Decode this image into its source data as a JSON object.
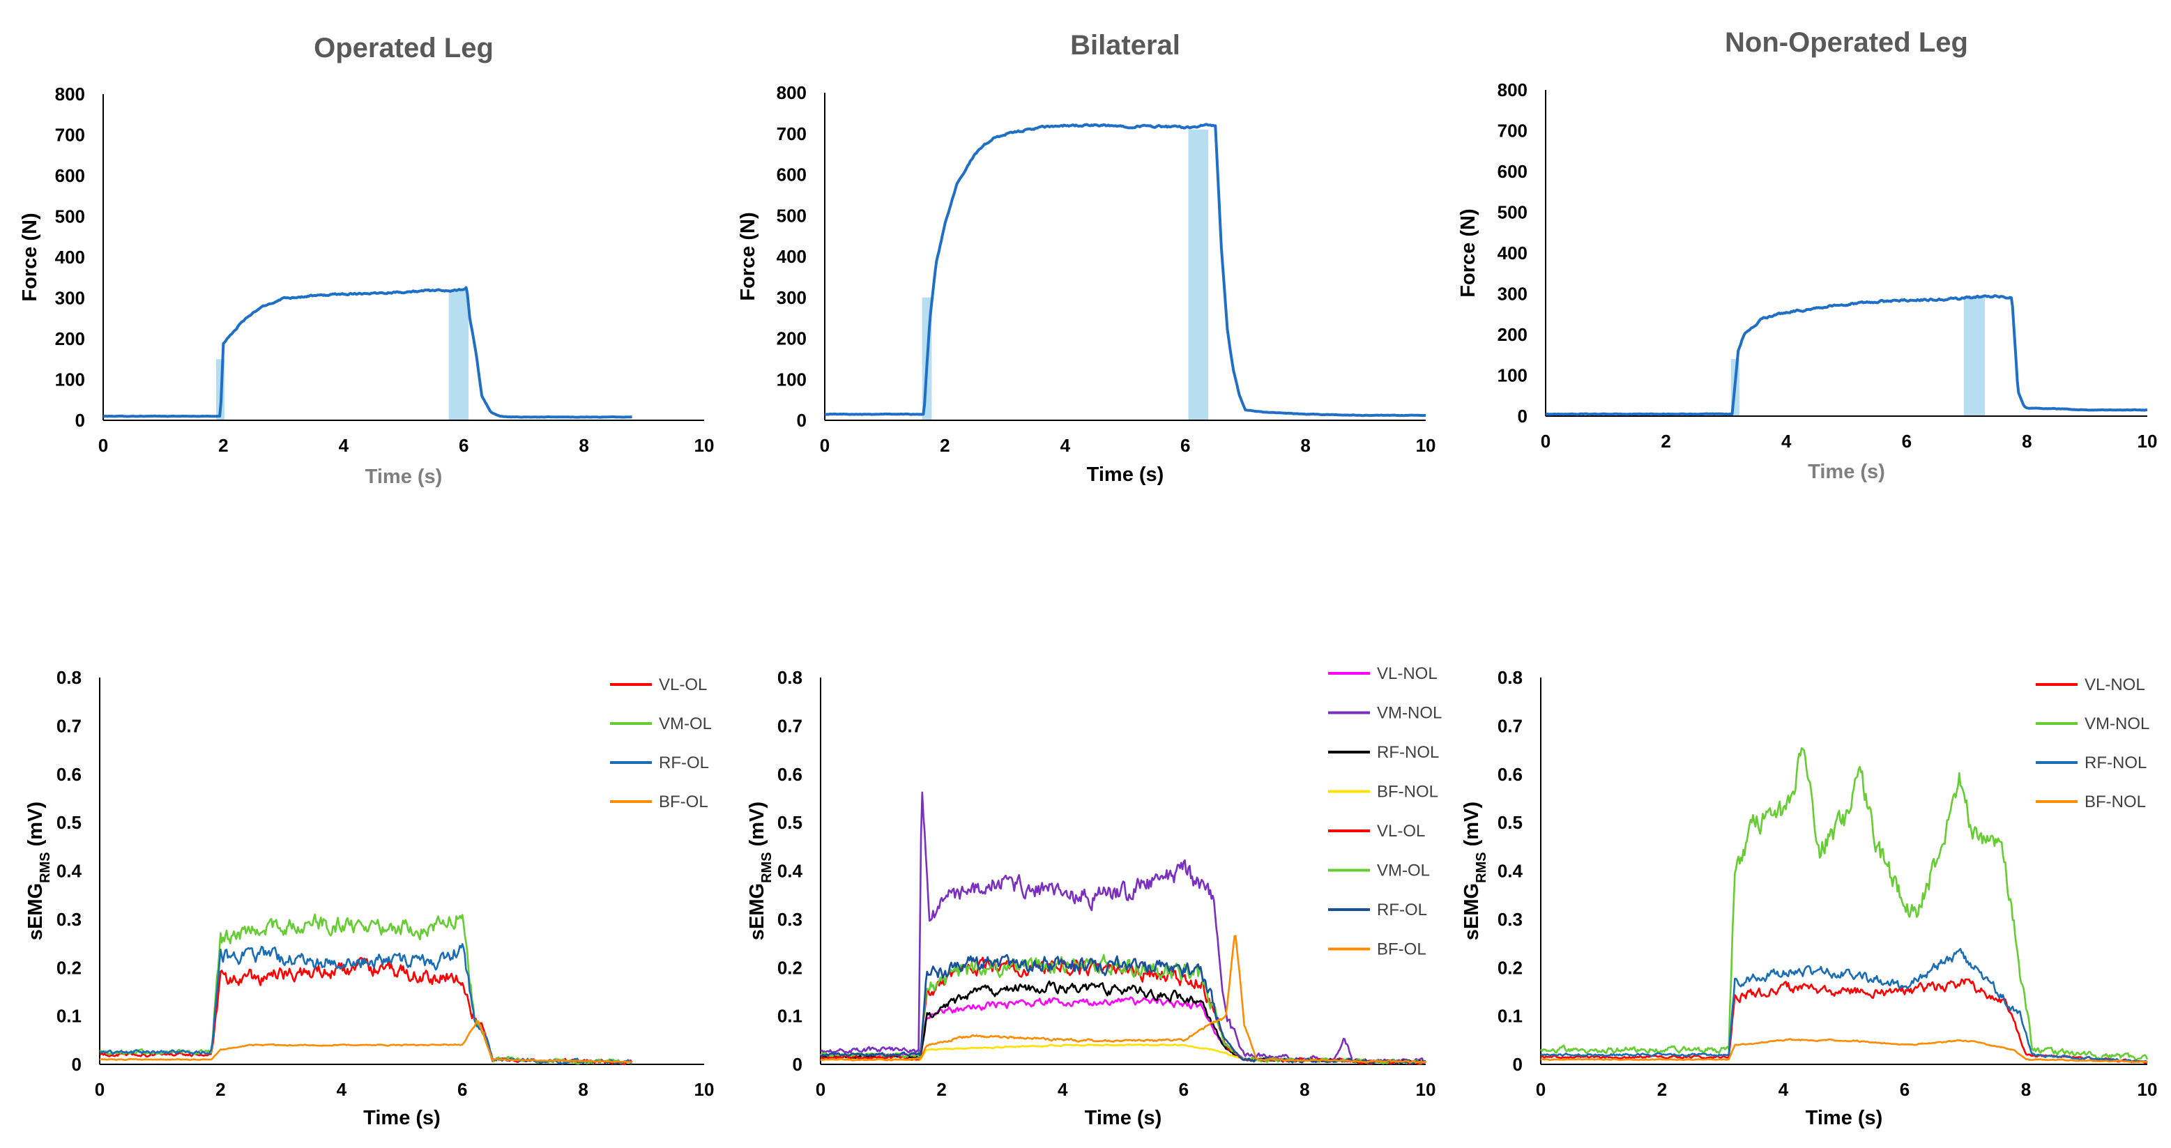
{
  "chart_data": [
    {
      "type": "line",
      "panel": "force-operated",
      "title": "Operated Leg",
      "xlabel": "Time (s)",
      "ylabel": "Force (N)",
      "xlim": [
        0,
        10
      ],
      "ylim": [
        0,
        800
      ],
      "xticks": [
        "0",
        "2",
        "4",
        "6",
        "8",
        "10"
      ],
      "yticks": [
        "0",
        "100",
        "200",
        "300",
        "400",
        "500",
        "600",
        "700",
        "800"
      ],
      "xlabel_color": "#7f7f7f",
      "series": [
        {
          "name": "Force",
          "color": "#1f6fc5",
          "x": [
            0,
            1.95,
            2.0,
            2.1,
            2.3,
            2.6,
            3.0,
            3.5,
            4.0,
            4.5,
            5.0,
            5.5,
            5.9,
            6.05,
            6.1,
            6.2,
            6.3,
            6.45,
            6.6,
            6.8,
            7.0,
            8.0,
            8.8
          ],
          "y": [
            10,
            10,
            190,
            205,
            240,
            275,
            300,
            305,
            310,
            312,
            315,
            318,
            318,
            325,
            250,
            170,
            60,
            20,
            10,
            8,
            8,
            8,
            8
          ],
          "noise": 4
        }
      ],
      "shaded": [
        {
          "x0": 1.88,
          "x1": 2.02,
          "y": 150
        },
        {
          "x0": 5.75,
          "x1": 6.08,
          "y": 320
        }
      ]
    },
    {
      "type": "line",
      "panel": "force-bilateral",
      "title": "Bilateral",
      "xlabel": "Time (s)",
      "ylabel": "Force (N)",
      "xlim": [
        0,
        10
      ],
      "ylim": [
        0,
        800
      ],
      "xticks": [
        "0",
        "2",
        "4",
        "6",
        "8",
        "10"
      ],
      "yticks": [
        "0",
        "100",
        "200",
        "300",
        "400",
        "500",
        "600",
        "700",
        "800"
      ],
      "xlabel_color": "#000000",
      "series": [
        {
          "name": "Force",
          "color": "#1f6fc5",
          "x": [
            0,
            1.65,
            1.75,
            1.85,
            2.0,
            2.2,
            2.5,
            2.8,
            3.2,
            3.6,
            4.0,
            4.5,
            5.0,
            5.5,
            6.0,
            6.3,
            6.5,
            6.6,
            6.7,
            6.8,
            6.9,
            7.0,
            7.3,
            8.0,
            9.0,
            10.0
          ],
          "y": [
            15,
            15,
            250,
            380,
            480,
            580,
            650,
            690,
            705,
            715,
            720,
            720,
            718,
            718,
            715,
            720,
            720,
            420,
            220,
            120,
            60,
            25,
            20,
            15,
            12,
            12
          ],
          "noise": 5
        }
      ],
      "shaded": [
        {
          "x0": 1.62,
          "x1": 1.78,
          "y": 300
        },
        {
          "x0": 6.05,
          "x1": 6.38,
          "y": 710
        }
      ]
    },
    {
      "type": "line",
      "panel": "force-non-operated",
      "title": "Non-Operated Leg",
      "xlabel": "Time (s)",
      "ylabel": "Force (N)",
      "xlim": [
        0,
        10
      ],
      "ylim": [
        0,
        800
      ],
      "xticks": [
        "0",
        "2",
        "4",
        "6",
        "8",
        "10"
      ],
      "yticks": [
        "0",
        "100",
        "200",
        "300",
        "400",
        "500",
        "600",
        "700",
        "800"
      ],
      "xlabel_color": "#7f7f7f",
      "series": [
        {
          "name": "Force",
          "color": "#1f6fc5",
          "x": [
            0,
            3.1,
            3.2,
            3.3,
            3.6,
            4.0,
            4.5,
            5.0,
            5.5,
            6.0,
            6.5,
            7.0,
            7.5,
            7.75,
            7.8,
            7.85,
            7.95,
            8.0,
            8.5,
            9.0,
            9.5,
            10.0
          ],
          "y": [
            5,
            5,
            160,
            200,
            240,
            255,
            265,
            275,
            280,
            285,
            285,
            290,
            295,
            290,
            180,
            60,
            25,
            20,
            18,
            15,
            15,
            15
          ],
          "noise": 5
        }
      ],
      "shaded": [
        {
          "x0": 3.08,
          "x1": 3.22,
          "y": 140
        },
        {
          "x0": 6.95,
          "x1": 7.3,
          "y": 295
        }
      ]
    },
    {
      "type": "line",
      "panel": "emg-operated",
      "title": "",
      "xlabel": "Time (s)",
      "ylabel": "sEMG",
      "ylabel_sub": "RMS",
      "ylabel_unit": " (mV)",
      "xlim": [
        0,
        10
      ],
      "ylim": [
        0,
        0.8
      ],
      "xticks": [
        "0",
        "2",
        "4",
        "6",
        "8",
        "10"
      ],
      "yticks": [
        "0",
        "0.1",
        "0.2",
        "0.3",
        "0.4",
        "0.5",
        "0.6",
        "0.7",
        "0.8"
      ],
      "xlabel_color": "#000000",
      "legend_position": "top-right",
      "series": [
        {
          "name": "VL-OL",
          "color": "#ff0000",
          "x": [
            0,
            1.85,
            2.0,
            2.5,
            3.5,
            4.5,
            5.5,
            6.0,
            6.2,
            6.35,
            6.5,
            8.8
          ],
          "y": [
            0.02,
            0.02,
            0.17,
            0.18,
            0.19,
            0.2,
            0.18,
            0.18,
            0.1,
            0.07,
            0.01,
            0.005
          ],
          "noise": 0.03
        },
        {
          "name": "VM-OL",
          "color": "#66cc33",
          "x": [
            0,
            1.85,
            2.0,
            2.5,
            3.5,
            4.5,
            5.5,
            6.0,
            6.2,
            6.35,
            6.5,
            8.8
          ],
          "y": [
            0.025,
            0.025,
            0.25,
            0.28,
            0.29,
            0.29,
            0.28,
            0.31,
            0.1,
            0.07,
            0.01,
            0.005
          ],
          "noise": 0.035
        },
        {
          "name": "RF-OL",
          "color": "#1a6db5",
          "x": [
            0,
            1.85,
            2.0,
            2.5,
            3.5,
            4.5,
            5.5,
            6.0,
            6.2,
            6.35,
            6.5,
            8.8
          ],
          "y": [
            0.025,
            0.025,
            0.22,
            0.23,
            0.21,
            0.22,
            0.21,
            0.24,
            0.1,
            0.08,
            0.01,
            0.005
          ],
          "noise": 0.03
        },
        {
          "name": "BF-OL",
          "color": "#ff8c00",
          "x": [
            0,
            1.85,
            2.0,
            2.5,
            4.0,
            6.0,
            6.25,
            6.35,
            6.5,
            8.8
          ],
          "y": [
            0.01,
            0.01,
            0.03,
            0.04,
            0.04,
            0.04,
            0.09,
            0.06,
            0.01,
            0.005
          ],
          "noise": 0.007
        }
      ]
    },
    {
      "type": "line",
      "panel": "emg-bilateral",
      "title": "",
      "xlabel": "Time (s)",
      "ylabel": "sEMG",
      "ylabel_sub": "RMS",
      "ylabel_unit": " (mV)",
      "xlim": [
        0,
        10
      ],
      "ylim": [
        0,
        0.8
      ],
      "xticks": [
        "0",
        "2",
        "4",
        "6",
        "8",
        "10"
      ],
      "yticks": [
        "0",
        "0.1",
        "0.2",
        "0.3",
        "0.4",
        "0.5",
        "0.6",
        "0.7",
        "0.8"
      ],
      "xlabel_color": "#000000",
      "legend_position": "top-right",
      "series": [
        {
          "name": "VL-NOL",
          "color": "#ff00ff",
          "x": [
            0,
            1.65,
            1.75,
            2.5,
            4.0,
            5.5,
            6.3,
            6.6,
            7.0,
            10.0
          ],
          "y": [
            0.02,
            0.02,
            0.1,
            0.12,
            0.13,
            0.13,
            0.12,
            0.05,
            0.01,
            0.005
          ],
          "noise": 0.015
        },
        {
          "name": "VM-NOL",
          "color": "#7b2fbe",
          "x": [
            0,
            1.62,
            1.67,
            1.8,
            2.0,
            3.0,
            4.0,
            5.0,
            6.0,
            6.5,
            6.7,
            7.0,
            8.5,
            8.65,
            8.8,
            10.0
          ],
          "y": [
            0.03,
            0.03,
            0.57,
            0.3,
            0.34,
            0.38,
            0.35,
            0.35,
            0.4,
            0.35,
            0.1,
            0.02,
            0.01,
            0.05,
            0.01,
            0.005
          ],
          "noise": 0.04
        },
        {
          "name": "RF-NOL",
          "color": "#000000",
          "x": [
            0,
            1.65,
            1.75,
            2.5,
            4.0,
            5.5,
            6.3,
            6.7,
            7.0,
            10.0
          ],
          "y": [
            0.015,
            0.015,
            0.1,
            0.15,
            0.16,
            0.15,
            0.13,
            0.03,
            0.01,
            0.005
          ],
          "noise": 0.02
        },
        {
          "name": "BF-NOL",
          "color": "#ffe000",
          "x": [
            0,
            1.65,
            1.75,
            4.0,
            6.0,
            6.5,
            7.0,
            10.0
          ],
          "y": [
            0.01,
            0.01,
            0.03,
            0.04,
            0.04,
            0.03,
            0.01,
            0.005
          ],
          "noise": 0.008
        },
        {
          "name": "VL-OL",
          "color": "#ff0000",
          "x": [
            0,
            1.65,
            1.75,
            2.5,
            4.0,
            5.5,
            6.3,
            6.7,
            7.0,
            10.0
          ],
          "y": [
            0.015,
            0.015,
            0.15,
            0.2,
            0.2,
            0.19,
            0.17,
            0.04,
            0.01,
            0.005
          ],
          "noise": 0.03
        },
        {
          "name": "VM-OL",
          "color": "#66cc33",
          "x": [
            0,
            1.65,
            1.75,
            2.5,
            4.0,
            5.5,
            6.3,
            6.7,
            7.0,
            10.0
          ],
          "y": [
            0.02,
            0.02,
            0.16,
            0.2,
            0.21,
            0.2,
            0.18,
            0.04,
            0.01,
            0.005
          ],
          "noise": 0.035
        },
        {
          "name": "RF-OL",
          "color": "#1a4f9c",
          "x": [
            0,
            1.65,
            1.75,
            2.5,
            4.0,
            5.5,
            6.3,
            6.7,
            7.0,
            10.0
          ],
          "y": [
            0.02,
            0.02,
            0.18,
            0.21,
            0.21,
            0.2,
            0.19,
            0.05,
            0.01,
            0.005
          ],
          "noise": 0.03
        },
        {
          "name": "BF-OL",
          "color": "#ff8c00",
          "x": [
            0,
            1.65,
            1.75,
            2.5,
            4.0,
            6.0,
            6.7,
            6.85,
            7.0,
            7.2,
            10.0
          ],
          "y": [
            0.01,
            0.01,
            0.04,
            0.06,
            0.05,
            0.05,
            0.1,
            0.28,
            0.08,
            0.01,
            0.005
          ],
          "noise": 0.012
        }
      ]
    },
    {
      "type": "line",
      "panel": "emg-non-operated",
      "title": "",
      "xlabel": "Time (s)",
      "ylabel": "sEMG",
      "ylabel_sub": "RMS",
      "ylabel_unit": " (mV)",
      "xlim": [
        0,
        10
      ],
      "ylim": [
        0,
        0.8
      ],
      "xticks": [
        "0",
        "2",
        "4",
        "6",
        "8",
        "10"
      ],
      "yticks": [
        "0",
        "0.1",
        "0.2",
        "0.3",
        "0.4",
        "0.5",
        "0.6",
        "0.7",
        "0.8"
      ],
      "xlabel_color": "#000000",
      "legend_position": "top-right",
      "series": [
        {
          "name": "VL-NOL",
          "color": "#ff0000",
          "x": [
            0,
            3.1,
            3.2,
            4.0,
            5.0,
            6.0,
            7.0,
            7.7,
            8.0,
            10.0
          ],
          "y": [
            0.015,
            0.015,
            0.14,
            0.16,
            0.15,
            0.15,
            0.17,
            0.12,
            0.02,
            0.005
          ],
          "noise": 0.02
        },
        {
          "name": "VM-NOL",
          "color": "#66cc33",
          "x": [
            0,
            3.1,
            3.2,
            3.5,
            4.0,
            4.35,
            4.6,
            5.0,
            5.25,
            5.5,
            5.8,
            6.2,
            6.6,
            6.9,
            7.2,
            7.6,
            7.9,
            8.1,
            10.0
          ],
          "y": [
            0.03,
            0.03,
            0.4,
            0.5,
            0.52,
            0.65,
            0.45,
            0.5,
            0.62,
            0.46,
            0.38,
            0.3,
            0.45,
            0.58,
            0.45,
            0.45,
            0.2,
            0.03,
            0.01
          ],
          "noise": 0.05
        },
        {
          "name": "RF-NOL",
          "color": "#1a6db5",
          "x": [
            0,
            3.1,
            3.2,
            4.0,
            5.0,
            6.0,
            6.9,
            7.4,
            7.9,
            8.1,
            10.0
          ],
          "y": [
            0.02,
            0.02,
            0.17,
            0.19,
            0.19,
            0.16,
            0.23,
            0.17,
            0.1,
            0.02,
            0.005
          ],
          "noise": 0.02
        },
        {
          "name": "BF-NOL",
          "color": "#ff8c00",
          "x": [
            0,
            3.1,
            3.2,
            4.0,
            5.0,
            6.0,
            7.0,
            7.8,
            8.0,
            10.0
          ],
          "y": [
            0.01,
            0.01,
            0.04,
            0.05,
            0.05,
            0.04,
            0.05,
            0.03,
            0.01,
            0.005
          ],
          "noise": 0.008
        }
      ]
    }
  ]
}
